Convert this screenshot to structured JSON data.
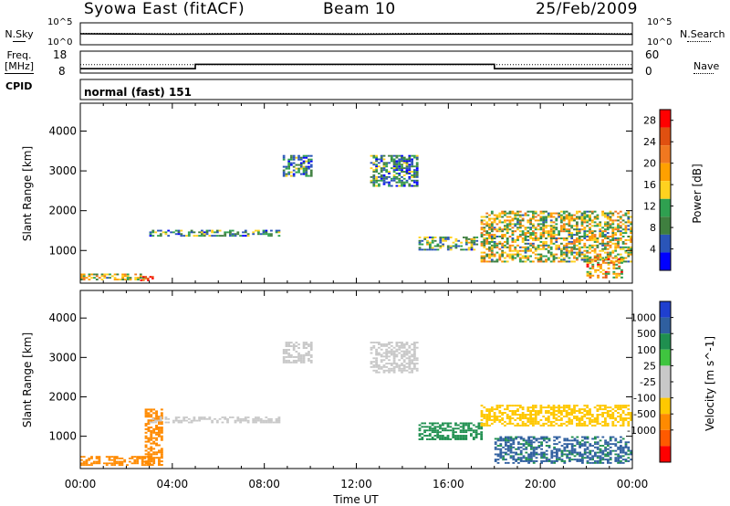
{
  "header": {
    "station": "Syowa East (fitACF)",
    "beam": "Beam 10",
    "date": "25/Feb/2009"
  },
  "noise_panel": {
    "left_label": "N.Sky",
    "right_label": "N.Search",
    "left_ticks": [
      "10^5",
      "10^0"
    ],
    "right_ticks": [
      "10^5",
      "10^0"
    ]
  },
  "freq_panel": {
    "left_label_line1": "Freq.",
    "left_label_line2": "[MHz]",
    "left_ticks": [
      "18",
      "8"
    ],
    "right_label": "Nave",
    "right_ticks": [
      "60",
      "0"
    ]
  },
  "cpid": {
    "label": "CPID",
    "program": "normal (fast) 151"
  },
  "colors": {
    "power": [
      "#0000ff",
      "#2a55b8",
      "#3f7f3f",
      "#2fa050",
      "#ffd21f",
      "#ffa000",
      "#f07820",
      "#e05010",
      "#ff0000"
    ],
    "velocity": [
      "#ff0000",
      "#ff5a00",
      "#ff8a00",
      "#ffc800",
      "#c8c8c8",
      "#c8c8c8",
      "#3fc53f",
      "#1f8f4f",
      "#2f5f9f",
      "#1f3fcf"
    ]
  },
  "chart_data": [
    {
      "type": "line",
      "panel": "noise",
      "x": [
        "00:00",
        "04:00",
        "08:00",
        "12:00",
        "16:00",
        "20:00",
        "00:00"
      ],
      "series": [
        {
          "name": "N.Sky",
          "style": "solid",
          "values": [
            2.5,
            2.4,
            2.45,
            2.4,
            2.45,
            2.5,
            2.4
          ]
        },
        {
          "name": "N.Search",
          "style": "dotted",
          "values": [
            2.6,
            2.55,
            2.6,
            2.55,
            2.6,
            2.6,
            2.55
          ]
        }
      ],
      "ylim": [
        "10^0",
        "10^5"
      ]
    },
    {
      "type": "line",
      "panel": "frequency",
      "x_hours": [
        0,
        5,
        5,
        18,
        18,
        24
      ],
      "series": [
        {
          "name": "Freq.",
          "unit": "MHz",
          "style": "solid",
          "values": [
            10,
            10,
            12,
            12,
            10,
            10
          ]
        },
        {
          "name": "Nave",
          "style": "dotted",
          "values": [
            23,
            23,
            23,
            23,
            23,
            23
          ]
        }
      ],
      "ylim_freq": [
        8,
        18
      ],
      "ylim_nave": [
        0,
        60
      ]
    },
    {
      "type": "heatmap",
      "panel": "power",
      "xlabel": "Time UT",
      "ylabel": "Slant Range [km]",
      "x_ticks": [
        "00:00",
        "04:00",
        "08:00",
        "12:00",
        "16:00",
        "20:00",
        "00:00"
      ],
      "y_ticks": [
        "1000",
        "2000",
        "3000",
        "4000"
      ],
      "xlim_hours": [
        0,
        24
      ],
      "ylim_km": [
        180,
        4700
      ],
      "colorbar": {
        "label": "Power [dB]",
        "ticks": [
          "4",
          "8",
          "12",
          "16",
          "20",
          "24",
          "28"
        ],
        "range": [
          0,
          30
        ]
      },
      "echo_regions": [
        {
          "t0": 0.0,
          "t1": 2.8,
          "r0": 250,
          "r1": 420,
          "value": 14
        },
        {
          "t0": 2.6,
          "t1": 3.2,
          "r0": 230,
          "r1": 360,
          "value": 29
        },
        {
          "t0": 3.0,
          "t1": 8.7,
          "r0": 1350,
          "r1": 1520,
          "value": 9
        },
        {
          "t0": 8.8,
          "t1": 10.1,
          "r0": 2850,
          "r1": 3400,
          "value": 8
        },
        {
          "t0": 12.6,
          "t1": 14.7,
          "r0": 2600,
          "r1": 3400,
          "value": 8
        },
        {
          "t0": 14.7,
          "t1": 17.3,
          "r0": 1000,
          "r1": 1350,
          "value": 10
        },
        {
          "t0": 17.4,
          "t1": 24.0,
          "r0": 700,
          "r1": 2000,
          "value": 14
        },
        {
          "t0": 22.0,
          "t1": 23.6,
          "r0": 300,
          "r1": 850,
          "value": 19
        }
      ]
    },
    {
      "type": "heatmap",
      "panel": "velocity",
      "xlabel": "Time UT",
      "ylabel": "Slant Range [km]",
      "x_ticks": [
        "00:00",
        "04:00",
        "08:00",
        "12:00",
        "16:00",
        "20:00",
        "00:00"
      ],
      "y_ticks": [
        "1000",
        "2000",
        "3000",
        "4000"
      ],
      "xlim_hours": [
        0,
        24
      ],
      "ylim_km": [
        180,
        4700
      ],
      "colorbar": {
        "label": "Velocity [m s^-1]",
        "ticks": [
          "1000",
          "500",
          "100",
          "25",
          "-25",
          "-100",
          "-500",
          "-1000"
        ]
      },
      "echo_regions": [
        {
          "t0": 0.0,
          "t1": 3.2,
          "r0": 250,
          "r1": 500,
          "value": -150
        },
        {
          "t0": 2.8,
          "t1": 3.6,
          "r0": 250,
          "r1": 1700,
          "value": -300
        },
        {
          "t0": 3.0,
          "t1": 8.7,
          "r0": 1330,
          "r1": 1500,
          "value": 0
        },
        {
          "t0": 8.8,
          "t1": 10.1,
          "r0": 2850,
          "r1": 3400,
          "value": 0
        },
        {
          "t0": 12.6,
          "t1": 14.7,
          "r0": 2600,
          "r1": 3400,
          "value": 0
        },
        {
          "t0": 14.7,
          "t1": 17.5,
          "r0": 900,
          "r1": 1350,
          "value": 300
        },
        {
          "t0": 17.4,
          "t1": 24.0,
          "r0": 1250,
          "r1": 1800,
          "value": -50
        },
        {
          "t0": 18.0,
          "t1": 24.0,
          "r0": 300,
          "r1": 1000,
          "value": 600
        }
      ]
    }
  ]
}
